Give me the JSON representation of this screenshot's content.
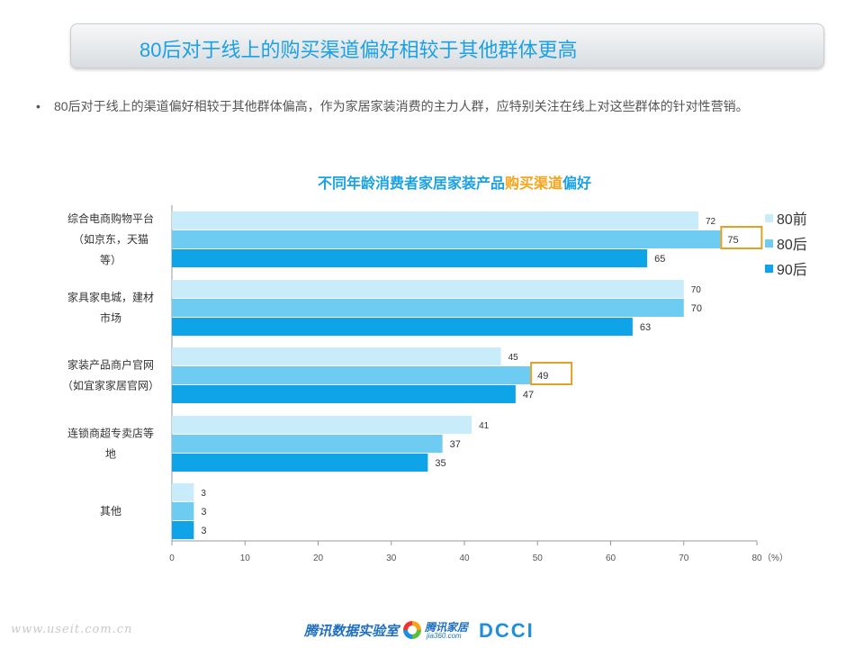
{
  "header": {
    "title": "80后对于线上的购买渠道偏好相较于其他群体更高"
  },
  "bullet": {
    "dot": "•",
    "text": "80后对于线上的渠道偏好相较于其他群体偏高，作为家居家装消费的主力人群，应特别关注在线上对这些群体的针对性营销。"
  },
  "chart_title": {
    "part1": "不同年龄消费者家居家装产品",
    "highlight": "购买渠道",
    "part2": "偏好"
  },
  "chart_data": {
    "type": "bar",
    "orientation": "horizontal",
    "title": "不同年龄消费者家居家装产品购买渠道偏好",
    "categories": [
      [
        "综合电商购物平台",
        "（如京东，天猫",
        "等）"
      ],
      [
        "家具家电城，建材",
        "市场"
      ],
      [
        "家装产品商户官网",
        "（如宜家家居官网）"
      ],
      [
        "连锁商超专卖店等",
        "地"
      ],
      [
        "其他"
      ]
    ],
    "series": [
      {
        "name": "80前",
        "values": [
          72,
          70,
          45,
          41,
          3
        ],
        "color": "#c8ecfa"
      },
      {
        "name": "80后",
        "values": [
          75,
          70,
          49,
          37,
          3
        ],
        "color": "#6ecbf2"
      },
      {
        "name": "90后",
        "values": [
          65,
          63,
          47,
          35,
          3
        ],
        "color": "#0fa3e8"
      }
    ],
    "xlim": [
      0,
      80
    ],
    "xticks": [
      0,
      10,
      20,
      30,
      40,
      50,
      60,
      70,
      80
    ],
    "unit": "（%）",
    "highlighted": [
      {
        "series": 1,
        "category": 0
      },
      {
        "series": 1,
        "category": 2
      }
    ],
    "highlight_color": "#e0a126",
    "grid": false,
    "legend_position": "top-right"
  },
  "footer": {
    "watermark": "www.useit.com.cn",
    "lab": "腾讯数据实验室",
    "logo2_name": "腾讯家居",
    "logo2_sub": "jia360.com",
    "dcci": "DCCI"
  }
}
